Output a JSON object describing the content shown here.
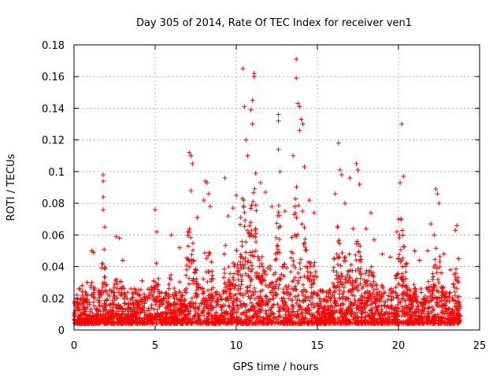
{
  "chart_data": {
    "type": "scatter",
    "title": "Day 305 of 2014, Rate Of TEC Index for receiver ven1",
    "xlabel": "GPS time / hours",
    "ylabel": "ROTI / TECUs",
    "xlim": [
      0,
      25
    ],
    "ylim": [
      0,
      0.18
    ],
    "xticks": [
      "0",
      "5",
      "10",
      "15",
      "20",
      "25"
    ],
    "yticks": [
      "0",
      "0.02",
      "0.04",
      "0.06",
      "0.08",
      "0.1",
      "0.12",
      "0.14",
      "0.16",
      "0.18"
    ],
    "grid": true,
    "marker": "+",
    "color": "#ff0000",
    "series": [
      {
        "name": "ROTI",
        "description": "dense cloud of ~10,000 points between 0 and 24 h; baseline 0.005-0.02 TECU/min with spikes",
        "points": [
          [
            0.1,
            0.018
          ],
          [
            0.3,
            0.026
          ],
          [
            0.5,
            0.028
          ],
          [
            0.8,
            0.03
          ],
          [
            1.1,
            0.05
          ],
          [
            1.2,
            0.049
          ],
          [
            1.8,
            0.098
          ],
          [
            1.8,
            0.094
          ],
          [
            1.8,
            0.084
          ],
          [
            1.8,
            0.076
          ],
          [
            1.9,
            0.065
          ],
          [
            2.6,
            0.059
          ],
          [
            2.8,
            0.058
          ],
          [
            3.0,
            0.044
          ],
          [
            3.7,
            0.026
          ],
          [
            4.2,
            0.031
          ],
          [
            5.0,
            0.076
          ],
          [
            5.1,
            0.062
          ],
          [
            6.0,
            0.06
          ],
          [
            6.5,
            0.052
          ],
          [
            7.1,
            0.112
          ],
          [
            7.2,
            0.11
          ],
          [
            7.3,
            0.105
          ],
          [
            7.2,
            0.088
          ],
          [
            7.6,
            0.071
          ],
          [
            8.0,
            0.082
          ],
          [
            8.1,
            0.094
          ],
          [
            8.2,
            0.093
          ],
          [
            8.3,
            0.086
          ],
          [
            8.4,
            0.078
          ],
          [
            9.3,
            0.096
          ],
          [
            9.5,
            0.072
          ],
          [
            9.8,
            0.077
          ],
          [
            10.0,
            0.085
          ],
          [
            10.4,
            0.165
          ],
          [
            10.5,
            0.141
          ],
          [
            10.6,
            0.12
          ],
          [
            10.7,
            0.11
          ],
          [
            10.9,
            0.139
          ],
          [
            11.0,
            0.145
          ],
          [
            11.1,
            0.16
          ],
          [
            11.1,
            0.162
          ],
          [
            11.0,
            0.13
          ],
          [
            11.2,
            0.099
          ],
          [
            11.5,
            0.093
          ],
          [
            11.8,
            0.087
          ],
          [
            12.2,
            0.078
          ],
          [
            12.6,
            0.136
          ],
          [
            12.6,
            0.132
          ],
          [
            12.6,
            0.114
          ],
          [
            12.7,
            0.1
          ],
          [
            13.0,
            0.075
          ],
          [
            13.5,
            0.11
          ],
          [
            13.7,
            0.171
          ],
          [
            13.7,
            0.159
          ],
          [
            13.8,
            0.143
          ],
          [
            13.9,
            0.141
          ],
          [
            13.9,
            0.126
          ],
          [
            14.0,
            0.133
          ],
          [
            14.1,
            0.13
          ],
          [
            14.2,
            0.103
          ],
          [
            14.5,
            0.082
          ],
          [
            14.8,
            0.074
          ],
          [
            16.1,
            0.086
          ],
          [
            16.3,
            0.118
          ],
          [
            16.4,
            0.101
          ],
          [
            16.5,
            0.098
          ],
          [
            16.7,
            0.08
          ],
          [
            17.0,
            0.096
          ],
          [
            17.2,
            0.064
          ],
          [
            17.4,
            0.105
          ],
          [
            17.5,
            0.101
          ],
          [
            17.6,
            0.092
          ],
          [
            18.0,
            0.064
          ],
          [
            18.3,
            0.074
          ],
          [
            18.5,
            0.057
          ],
          [
            19.0,
            0.048
          ],
          [
            19.5,
            0.046
          ],
          [
            19.9,
            0.062
          ],
          [
            20.0,
            0.07
          ],
          [
            20.1,
            0.093
          ],
          [
            20.2,
            0.13
          ],
          [
            20.3,
            0.097
          ],
          [
            20.5,
            0.042
          ],
          [
            21.0,
            0.05
          ],
          [
            21.3,
            0.044
          ],
          [
            21.8,
            0.05
          ],
          [
            22.0,
            0.067
          ],
          [
            22.2,
            0.06
          ],
          [
            22.3,
            0.089
          ],
          [
            22.4,
            0.086
          ],
          [
            22.5,
            0.08
          ],
          [
            22.8,
            0.048
          ],
          [
            23.2,
            0.038
          ],
          [
            23.5,
            0.063
          ],
          [
            23.6,
            0.066
          ],
          [
            23.7,
            0.045
          ]
        ]
      }
    ]
  }
}
